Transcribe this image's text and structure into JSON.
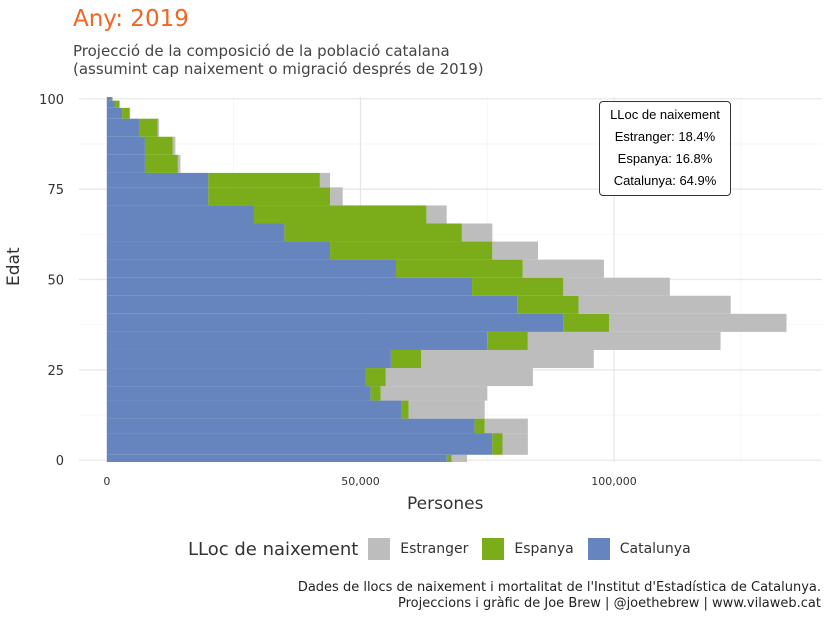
{
  "header": {
    "title": "Any: 2019",
    "subtitle_line1": "Projecció de la composició de la població catalana",
    "subtitle_line2": "(assumint cap naixement o migració després de 2019)"
  },
  "annotation": {
    "title": "LLoc de naixement",
    "line1": "Estranger: 18.4%",
    "line2": "Espanya: 16.8%",
    "line3": "Catalunya: 64.9%"
  },
  "legend": {
    "title": "LLoc de naixement",
    "items": [
      {
        "label": "Estranger",
        "color": "#bdbdbd"
      },
      {
        "label": "Espanya",
        "color": "#7aad19"
      },
      {
        "label": "Catalunya",
        "color": "#6684bd"
      }
    ]
  },
  "caption": {
    "line1": "Dades de llocs de naixement i mortalitat de l'Institut d'Estadística de Catalunya.",
    "line2": "Projeccions i gràfic de Joe Brew | @joethebrew | www.vilaweb.cat"
  },
  "chart_data": {
    "type": "bar",
    "orientation": "horizontal-stacked",
    "xlabel": "Persones",
    "ylabel": "Edat",
    "xlim": [
      -5500,
      141000
    ],
    "ylim": [
      -0.5,
      100.5
    ],
    "x_ticks": [
      0,
      50000,
      100000
    ],
    "x_tick_labels": [
      "0",
      "50,000",
      "100,000"
    ],
    "y_ticks": [
      0,
      25,
      50,
      75,
      100
    ],
    "y_tick_labels": [
      "0",
      "25",
      "50",
      "75",
      "100"
    ],
    "colors": {
      "Catalunya": "#6684bd",
      "Espanya": "#7aad19",
      "Estranger": "#bdbdbd"
    },
    "segments": [
      {
        "ages": [
          0,
          1
        ],
        "Catalunya": 67000,
        "Espanya": 1000,
        "Estranger": 3000
      },
      {
        "ages": [
          2,
          7
        ],
        "Catalunya": 76000,
        "Espanya": 2000,
        "Estranger": 5000
      },
      {
        "ages": [
          8,
          11
        ],
        "Catalunya": 72500,
        "Espanya": 2000,
        "Estranger": 8500
      },
      {
        "ages": [
          12,
          16
        ],
        "Catalunya": 58000,
        "Espanya": 1500,
        "Estranger": 15000
      },
      {
        "ages": [
          17,
          20
        ],
        "Catalunya": 52000,
        "Espanya": 2000,
        "Estranger": 21000
      },
      {
        "ages": [
          21,
          25
        ],
        "Catalunya": 51000,
        "Espanya": 4000,
        "Estranger": 29000
      },
      {
        "ages": [
          26,
          30
        ],
        "Catalunya": 56000,
        "Espanya": 6000,
        "Estranger": 34000
      },
      {
        "ages": [
          31,
          35
        ],
        "Catalunya": 75000,
        "Espanya": 8000,
        "Estranger": 38000
      },
      {
        "ages": [
          36,
          40
        ],
        "Catalunya": 90000,
        "Espanya": 9000,
        "Estranger": 35000
      },
      {
        "ages": [
          41,
          45
        ],
        "Catalunya": 81000,
        "Espanya": 12000,
        "Estranger": 30000
      },
      {
        "ages": [
          46,
          50
        ],
        "Catalunya": 72000,
        "Espanya": 18000,
        "Estranger": 21000
      },
      {
        "ages": [
          51,
          55
        ],
        "Catalunya": 57000,
        "Espanya": 25000,
        "Estranger": 16000
      },
      {
        "ages": [
          56,
          60
        ],
        "Catalunya": 44000,
        "Espanya": 32000,
        "Estranger": 9000
      },
      {
        "ages": [
          61,
          65
        ],
        "Catalunya": 35000,
        "Espanya": 35000,
        "Estranger": 6000
      },
      {
        "ages": [
          66,
          70
        ],
        "Catalunya": 29000,
        "Espanya": 34000,
        "Estranger": 4000
      },
      {
        "ages": [
          71,
          75
        ],
        "Catalunya": 20000,
        "Espanya": 24000,
        "Estranger": 2500
      },
      {
        "ages": [
          76,
          79
        ],
        "Catalunya": 20000,
        "Espanya": 22000,
        "Estranger": 2000
      },
      {
        "ages": [
          80,
          84
        ],
        "Catalunya": 7500,
        "Espanya": 6500,
        "Estranger": 500
      },
      {
        "ages": [
          85,
          89
        ],
        "Catalunya": 7500,
        "Espanya": 5500,
        "Estranger": 500
      },
      {
        "ages": [
          90,
          94
        ],
        "Catalunya": 6500,
        "Espanya": 3500,
        "Estranger": 300
      },
      {
        "ages": [
          95,
          97
        ],
        "Catalunya": 3000,
        "Espanya": 1500,
        "Estranger": 100
      },
      {
        "ages": [
          98,
          99
        ],
        "Catalunya": 1500,
        "Espanya": 1000,
        "Estranger": 0
      },
      {
        "ages": [
          100,
          100
        ],
        "Catalunya": 800,
        "Espanya": 300,
        "Estranger": 0
      }
    ]
  }
}
